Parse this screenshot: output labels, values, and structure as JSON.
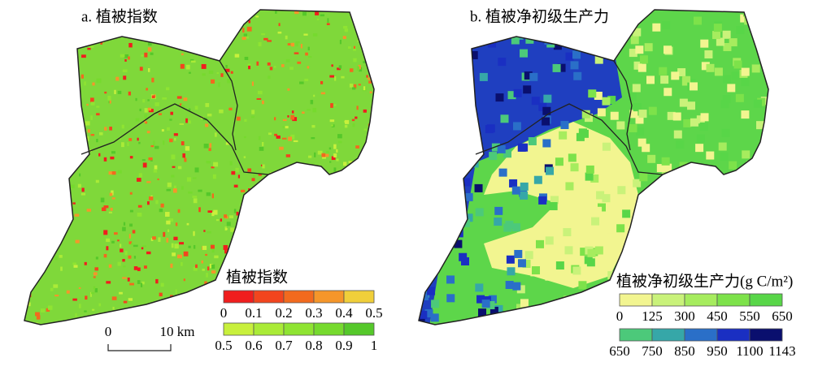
{
  "panels": [
    {
      "title": "a. 植被指数",
      "legend": {
        "title": "植被指数",
        "rows": [
          {
            "colors": [
              "#f01e1e",
              "#f2451e",
              "#f26a1e",
              "#f5962a",
              "#f0cf3a"
            ],
            "labels": [
              "0",
              "0.1",
              "0.2",
              "0.3",
              "0.4",
              "0.5"
            ]
          },
          {
            "colors": [
              "#c8f03c",
              "#aaeb37",
              "#8fe432",
              "#76da2e",
              "#55c82a"
            ],
            "labels": [
              "0.5",
              "0.6",
              "0.7",
              "0.8",
              "0.9",
              "1"
            ]
          }
        ]
      },
      "scale_bar": {
        "labels": [
          "0",
          "10 km"
        ]
      }
    },
    {
      "title": "b. 植被净初级生产力",
      "legend": {
        "title": "植被净初级生产力(g C/m²)",
        "rows": [
          {
            "colors": [
              "#f2f590",
              "#c9f27a",
              "#a6ec5e",
              "#7de24a",
              "#58d648"
            ],
            "labels": [
              "0",
              "125",
              "300",
              "450",
              "550",
              "650"
            ]
          },
          {
            "colors": [
              "#4cc97a",
              "#36a7a8",
              "#2a6fc8",
              "#1a2fc2",
              "#0a0f6e"
            ],
            "labels": [
              "650",
              "750",
              "850",
              "950",
              "1100",
              "1143"
            ]
          }
        ]
      }
    }
  ]
}
